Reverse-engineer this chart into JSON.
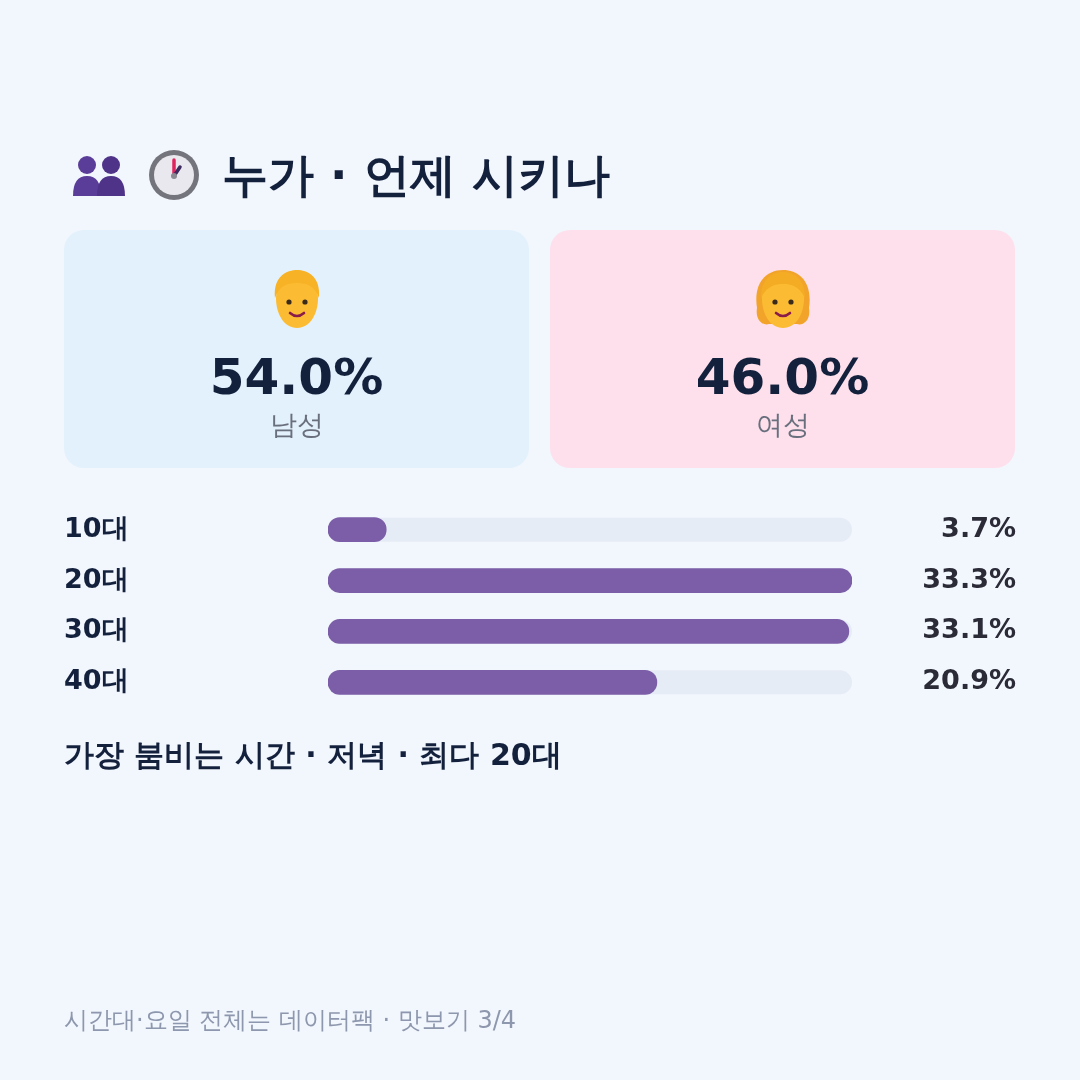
{
  "chart_data": [
    {
      "type": "other",
      "title": "누가 · 언제 시키나",
      "annotations": [
        "54.0%",
        "남성",
        "46.0%",
        "여성"
      ]
    },
    {
      "type": "bar",
      "orientation": "horizontal",
      "categories": [
        "10대",
        "20대",
        "30대",
        "40대"
      ],
      "values": [
        3.7,
        33.3,
        33.1,
        20.9
      ],
      "value_labels": [
        "3.7%",
        "33.3%",
        "33.1%",
        "20.9%"
      ],
      "color": "#7b5ea7",
      "xlim": [
        0,
        33.3
      ],
      "tick_labels": "y",
      "annotations": [
        "가장 붐비는 시간 · 저녁 · 최다 20대",
        "시간대·요일 전체는 데이터팩 · 맛보기 3/4"
      ]
    }
  ]
}
